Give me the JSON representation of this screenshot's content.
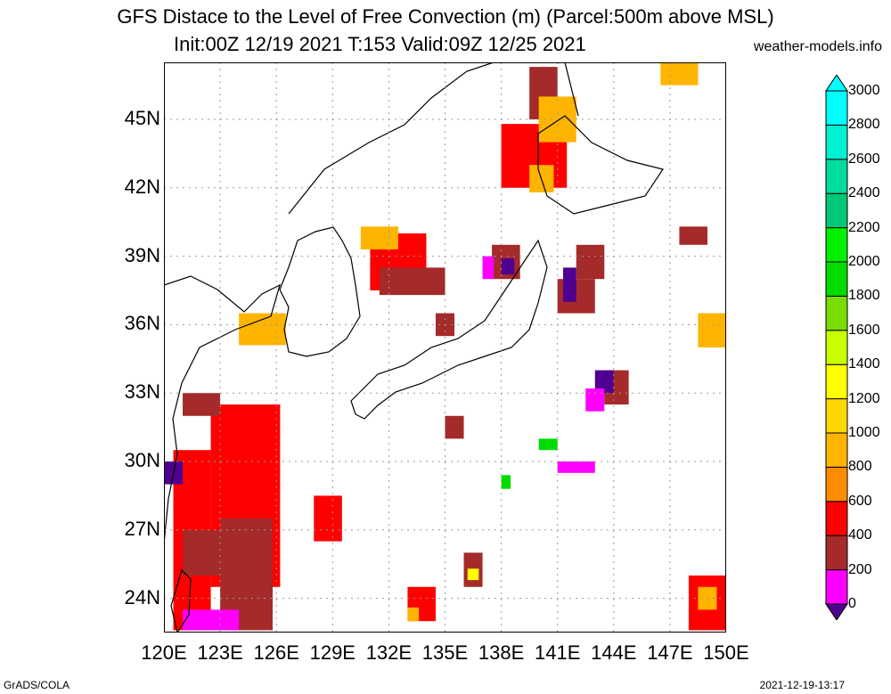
{
  "header": {
    "title_line1": "GFS Distace to the Level of Free Convection (m) (Parcel:500m above MSL)",
    "title_line2": "Init:00Z 12/19 2021 T:153 Valid:09Z 12/25 2021",
    "site": "weather-models.info"
  },
  "footer": {
    "left": "GrADS/COLA",
    "right": "2021-12-19-13:17"
  },
  "axes": {
    "lat_labels": [
      "45N",
      "42N",
      "39N",
      "36N",
      "33N",
      "30N",
      "27N",
      "24N"
    ],
    "lat_values": [
      45,
      42,
      39,
      36,
      33,
      30,
      27,
      24
    ],
    "lon_labels": [
      "120E",
      "123E",
      "126E",
      "129E",
      "132E",
      "135E",
      "138E",
      "141E",
      "144E",
      "147E",
      "150E"
    ],
    "lon_values": [
      120,
      123,
      126,
      129,
      132,
      135,
      138,
      141,
      144,
      147,
      150
    ],
    "lon_range": [
      120,
      150
    ],
    "lat_range": [
      22.5,
      47.5
    ]
  },
  "colorbar": {
    "labels": [
      "0",
      "200",
      "400",
      "600",
      "800",
      "1000",
      "1200",
      "1400",
      "1600",
      "1800",
      "2000",
      "2200",
      "2400",
      "2600",
      "2800",
      "3000"
    ],
    "colors": [
      "#500090",
      "#ff00ff",
      "#a52a2a",
      "#ff0000",
      "#ff8c00",
      "#ffb400",
      "#ffd700",
      "#ffff00",
      "#c8ff00",
      "#78dc00",
      "#00dc00",
      "#00f000",
      "#00c878",
      "#00dca0",
      "#00f0d2",
      "#00ffff"
    ]
  },
  "field_patches": [
    {
      "lon": [
        120.5,
        122.5
      ],
      "lat": [
        22.6,
        30.5
      ],
      "c": "#ff0000"
    },
    {
      "lon": [
        122.5,
        126.2
      ],
      "lat": [
        24.5,
        32.5
      ],
      "c": "#ff0000"
    },
    {
      "lon": [
        123.0,
        125.8
      ],
      "lat": [
        22.6,
        27.5
      ],
      "c": "#a52a2a"
    },
    {
      "lon": [
        121.0,
        123.0
      ],
      "lat": [
        25.0,
        27.0
      ],
      "c": "#a52a2a"
    },
    {
      "lon": [
        121.0,
        124.0
      ],
      "lat": [
        22.6,
        23.5
      ],
      "c": "#ff00ff"
    },
    {
      "lon": [
        120.0,
        121.0
      ],
      "lat": [
        29.0,
        30.0
      ],
      "c": "#500090"
    },
    {
      "lon": [
        121.0,
        123.0
      ],
      "lat": [
        32.0,
        33.0
      ],
      "c": "#a52a2a"
    },
    {
      "lon": [
        128.0,
        129.5
      ],
      "lat": [
        26.5,
        28.5
      ],
      "c": "#ff0000"
    },
    {
      "lon": [
        124.0,
        126.5
      ],
      "lat": [
        35.1,
        36.5
      ],
      "c": "#ffb400"
    },
    {
      "lon": [
        131.0,
        134.0
      ],
      "lat": [
        37.5,
        40.0
      ],
      "c": "#ff0000"
    },
    {
      "lon": [
        130.5,
        132.5
      ],
      "lat": [
        39.3,
        40.3
      ],
      "c": "#ffb400"
    },
    {
      "lon": [
        131.5,
        135.0
      ],
      "lat": [
        37.3,
        38.5
      ],
      "c": "#a52a2a"
    },
    {
      "lon": [
        137.5,
        139.0
      ],
      "lat": [
        38.0,
        39.5
      ],
      "c": "#a52a2a"
    },
    {
      "lon": [
        138.0,
        138.7
      ],
      "lat": [
        38.2,
        38.9
      ],
      "c": "#500090"
    },
    {
      "lon": [
        137.0,
        137.6
      ],
      "lat": [
        38.0,
        39.0
      ],
      "c": "#ff00ff"
    },
    {
      "lon": [
        138.0,
        141.5
      ],
      "lat": [
        42.0,
        44.8
      ],
      "c": "#ff0000"
    },
    {
      "lon": [
        139.5,
        141.0
      ],
      "lat": [
        45.0,
        47.3
      ],
      "c": "#a52a2a"
    },
    {
      "lon": [
        140.0,
        142.0
      ],
      "lat": [
        44.0,
        46.0
      ],
      "c": "#ffb400"
    },
    {
      "lon": [
        139.5,
        140.8
      ],
      "lat": [
        41.8,
        43.0
      ],
      "c": "#ffb400"
    },
    {
      "lon": [
        141.0,
        143.0
      ],
      "lat": [
        36.5,
        38.0
      ],
      "c": "#a52a2a"
    },
    {
      "lon": [
        142.0,
        143.5
      ],
      "lat": [
        38.0,
        39.5
      ],
      "c": "#a52a2a"
    },
    {
      "lon": [
        141.3,
        142.0
      ],
      "lat": [
        37.0,
        38.5
      ],
      "c": "#500090"
    },
    {
      "lon": [
        143.5,
        144.8
      ],
      "lat": [
        32.5,
        34.0
      ],
      "c": "#a52a2a"
    },
    {
      "lon": [
        143.0,
        144.0
      ],
      "lat": [
        33.0,
        34.0
      ],
      "c": "#500090"
    },
    {
      "lon": [
        142.5,
        143.5
      ],
      "lat": [
        32.2,
        33.2
      ],
      "c": "#ff00ff"
    },
    {
      "lon": [
        147.5,
        149.0
      ],
      "lat": [
        39.5,
        40.3
      ],
      "c": "#a52a2a"
    },
    {
      "lon": [
        148.5,
        150.0
      ],
      "lat": [
        35.0,
        36.5
      ],
      "c": "#ffb400"
    },
    {
      "lon": [
        146.5,
        148.5
      ],
      "lat": [
        46.5,
        47.5
      ],
      "c": "#ffb400"
    },
    {
      "lon": [
        136.0,
        137.0
      ],
      "lat": [
        24.5,
        26.0
      ],
      "c": "#a52a2a"
    },
    {
      "lon": [
        136.2,
        136.8
      ],
      "lat": [
        24.8,
        25.3
      ],
      "c": "#ffff00"
    },
    {
      "lon": [
        148.0,
        150.0
      ],
      "lat": [
        22.6,
        25.0
      ],
      "c": "#ff0000"
    },
    {
      "lon": [
        148.5,
        149.5
      ],
      "lat": [
        23.5,
        24.5
      ],
      "c": "#ffb400"
    },
    {
      "lon": [
        140.0,
        141.0
      ],
      "lat": [
        30.5,
        31.0
      ],
      "c": "#00dc00"
    },
    {
      "lon": [
        138.0,
        138.5
      ],
      "lat": [
        28.8,
        29.4
      ],
      "c": "#00dc00"
    },
    {
      "lon": [
        133.0,
        134.5
      ],
      "lat": [
        23.0,
        24.5
      ],
      "c": "#ff0000"
    },
    {
      "lon": [
        133.0,
        133.6
      ],
      "lat": [
        23.0,
        23.6
      ],
      "c": "#ffb400"
    },
    {
      "lon": [
        134.5,
        135.5
      ],
      "lat": [
        35.5,
        36.5
      ],
      "c": "#a52a2a"
    },
    {
      "lon": [
        135.0,
        136.0
      ],
      "lat": [
        31.0,
        32.0
      ],
      "c": "#a52a2a"
    },
    {
      "lon": [
        141.0,
        143.0
      ],
      "lat": [
        29.5,
        30.0
      ],
      "c": "#ff00ff"
    }
  ]
}
